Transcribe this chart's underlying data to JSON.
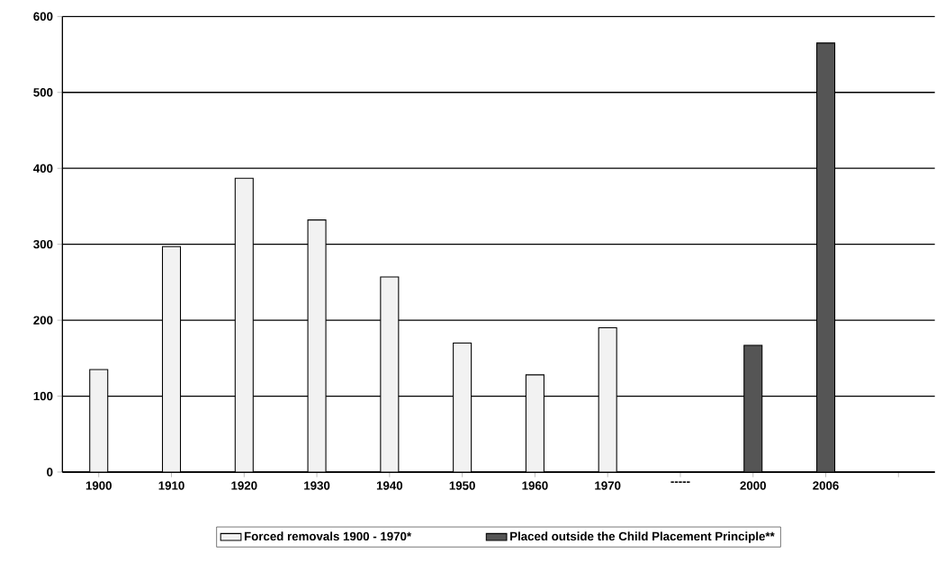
{
  "chart_data": {
    "type": "bar",
    "categories": [
      "1900",
      "1910",
      "1920",
      "1930",
      "1940",
      "1950",
      "1960",
      "1970",
      "-----",
      "2000",
      "2006",
      null
    ],
    "series": [
      {
        "name": "Forced removals 1900 - 1970*",
        "color": "#f2f2f2",
        "values": [
          135,
          297,
          387,
          332,
          257,
          170,
          128,
          190,
          null,
          null,
          null,
          null
        ]
      },
      {
        "name": "Placed outside the Child Placement Principle**",
        "color": "#555555",
        "values": [
          null,
          null,
          null,
          null,
          null,
          null,
          null,
          null,
          null,
          167,
          565,
          null
        ]
      }
    ],
    "ylim": [
      0,
      600
    ],
    "yticks": [
      0,
      100,
      200,
      300,
      400,
      500,
      600
    ],
    "grid": "y",
    "legend": "bottom"
  }
}
